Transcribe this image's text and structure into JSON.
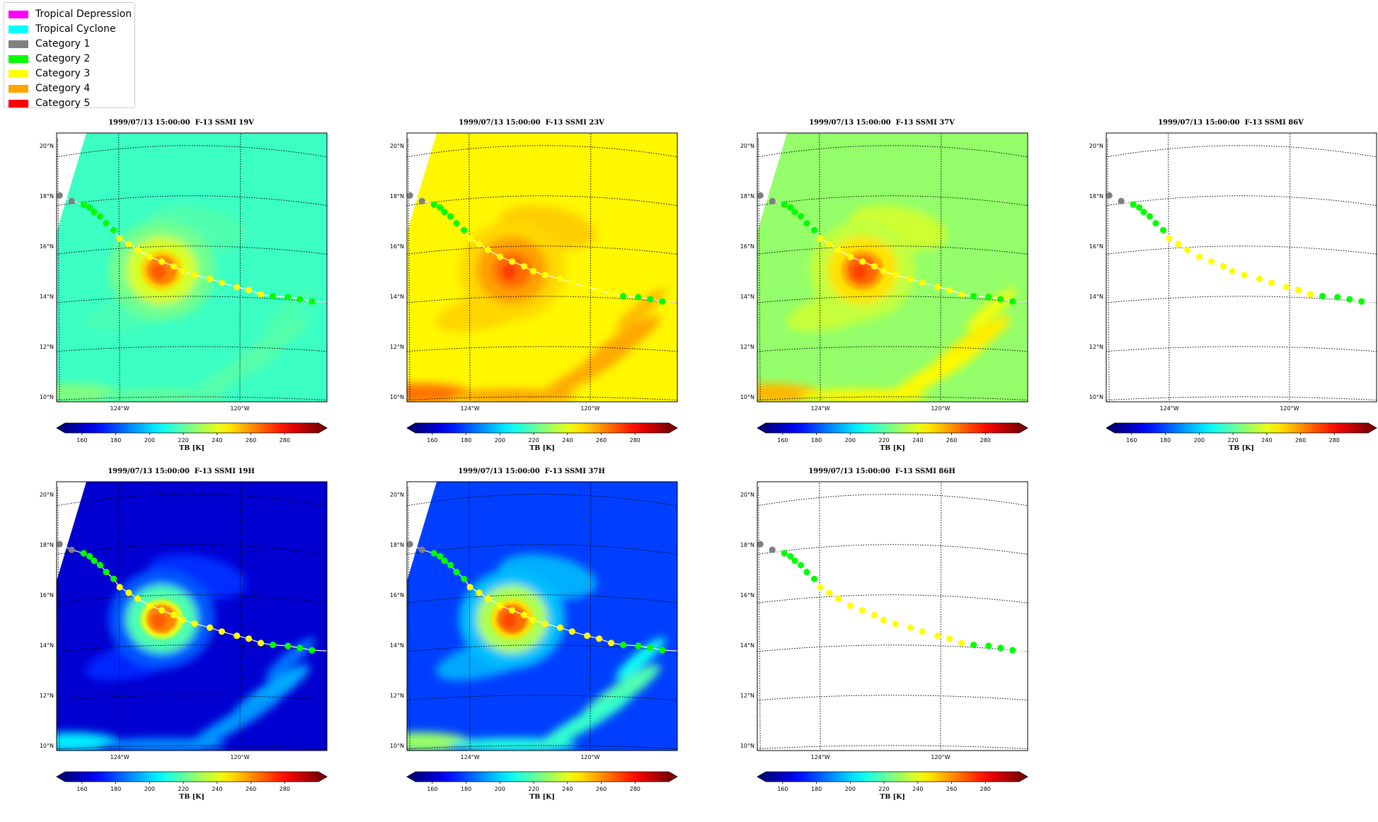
{
  "legend": [
    {
      "label": "Tropical Depression",
      "color": "#ff00ff"
    },
    {
      "label": "Tropical Cyclone",
      "color": "#00ffff"
    },
    {
      "label": "Category 1",
      "color": "#808080"
    },
    {
      "label": "Category 2",
      "color": "#00ff00"
    },
    {
      "label": "Category 3",
      "color": "#ffff00"
    },
    {
      "label": "Category 4",
      "color": "#ffa500"
    },
    {
      "label": "Category 5",
      "color": "#ff0000"
    }
  ],
  "colormap": "jet",
  "colorbar": {
    "ticks": [
      "160",
      "180",
      "200",
      "220",
      "240",
      "260",
      "280"
    ],
    "label": "TB [K]",
    "range": [
      150,
      300
    ]
  },
  "map": {
    "lat_labels": [
      "20°N",
      "18°N",
      "16°N",
      "14°N",
      "12°N",
      "10°N"
    ],
    "lon_labels": [
      "124°W",
      "120°W"
    ],
    "lats": [
      20,
      18,
      16,
      14,
      12,
      10
    ],
    "lons": [
      124,
      120
    ]
  },
  "panels": [
    {
      "title": "1999/07/13 15:00:00  F-13 SSMI 19V",
      "background": 215,
      "eye": 262,
      "ring": 238,
      "spiral": 0,
      "has_data": true
    },
    {
      "title": "1999/07/13 15:00:00  F-13 SSMI 23V",
      "background": 245,
      "eye": 266,
      "ring": 258,
      "spiral": 10,
      "has_data": true
    },
    {
      "title": "1999/07/13 15:00:00  F-13 SSMI 37V",
      "background": 228,
      "eye": 266,
      "ring": 248,
      "spiral": 18,
      "has_data": true
    },
    {
      "title": "1999/07/13 15:00:00  F-13 SSMI 86V",
      "background": 0,
      "eye": 0,
      "ring": 0,
      "spiral": 0,
      "has_data": false
    },
    {
      "title": "1999/07/13 15:00:00  F-13 SSMI 19H",
      "background": 162,
      "eye": 262,
      "ring": 218,
      "spiral": 35,
      "has_data": true
    },
    {
      "title": "1999/07/13 15:00:00  F-13 SSMI 37H",
      "background": 178,
      "eye": 265,
      "ring": 232,
      "spiral": 45,
      "has_data": true
    },
    {
      "title": "1999/07/13 15:00:00  F-13 SSMI 86H",
      "background": 0,
      "eye": 0,
      "ring": 0,
      "spiral": 0,
      "has_data": false
    }
  ],
  "storm_track": {
    "points": [
      {
        "lon": 126.0,
        "lat": 18.4,
        "category": "Category 1"
      },
      {
        "lon": 125.6,
        "lat": 18.1,
        "category": "Category 1"
      },
      {
        "lon": 125.2,
        "lat": 17.9,
        "category": "Category 2"
      },
      {
        "lon": 125.0,
        "lat": 17.75,
        "category": "Category 2"
      },
      {
        "lon": 124.85,
        "lat": 17.55,
        "category": "Category 2"
      },
      {
        "lon": 124.65,
        "lat": 17.35,
        "category": "Category 2"
      },
      {
        "lon": 124.45,
        "lat": 17.05,
        "category": "Category 2"
      },
      {
        "lon": 124.2,
        "lat": 16.75,
        "category": "Category 2"
      },
      {
        "lon": 124.0,
        "lat": 16.4,
        "category": "Category 3"
      },
      {
        "lon": 123.7,
        "lat": 16.15,
        "category": "Category 3"
      },
      {
        "lon": 123.4,
        "lat": 15.9,
        "category": "Category 3"
      },
      {
        "lon": 123.0,
        "lat": 15.6,
        "category": "Category 3"
      },
      {
        "lon": 122.6,
        "lat": 15.4,
        "category": "Category 3"
      },
      {
        "lon": 122.2,
        "lat": 15.2,
        "category": "Category 3"
      },
      {
        "lon": 121.9,
        "lat": 15.0,
        "category": "Category 3"
      },
      {
        "lon": 121.5,
        "lat": 14.85,
        "category": "Category 3"
      },
      {
        "lon": 121.0,
        "lat": 14.7,
        "category": "Category 3"
      },
      {
        "lon": 120.6,
        "lat": 14.55,
        "category": "Category 3"
      },
      {
        "lon": 120.1,
        "lat": 14.4,
        "category": "Category 3"
      },
      {
        "lon": 119.7,
        "lat": 14.3,
        "category": "Category 3"
      },
      {
        "lon": 119.3,
        "lat": 14.15,
        "category": "Category 3"
      },
      {
        "lon": 118.9,
        "lat": 14.1,
        "category": "Category 2"
      },
      {
        "lon": 118.4,
        "lat": 14.1,
        "category": "Category 2"
      },
      {
        "lon": 118.0,
        "lat": 14.05,
        "category": "Category 2"
      },
      {
        "lon": 117.6,
        "lat": 14.0,
        "category": "Category 2"
      }
    ]
  }
}
